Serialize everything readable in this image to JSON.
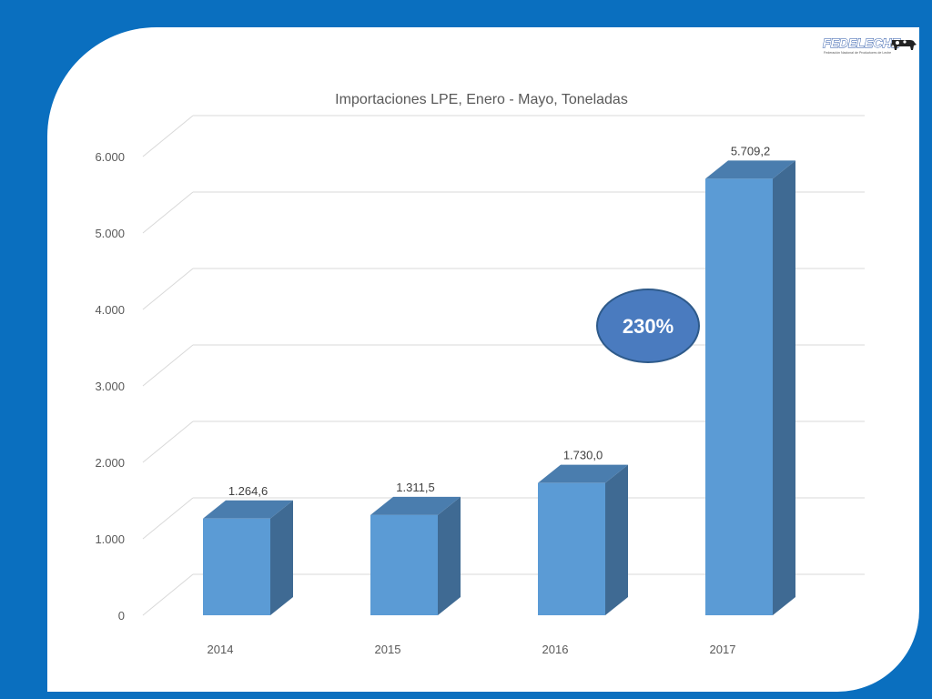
{
  "logo": {
    "name": "FEDELECHE",
    "tagline": "Federación Nacional de Productores de Leche"
  },
  "colors": {
    "background": "#0A6FBF",
    "bar_front": "#5B9BD5",
    "bar_side": "#3F6A93",
    "bar_top": "#4A7DAE",
    "badge_fill": "#4A7BBF",
    "badge_stroke": "#2E5A8A",
    "grid": "#D9D9D9"
  },
  "badge": {
    "text": "230%"
  },
  "chart_data": {
    "type": "bar",
    "style": "3d-column",
    "title": "Importaciones LPE, Enero - Mayo, Toneladas",
    "categories": [
      "2014",
      "2015",
      "2016",
      "2017"
    ],
    "values": [
      1264.6,
      1311.5,
      1730.0,
      5709.2
    ],
    "data_labels": [
      "1.264,6",
      "1.311,5",
      "1.730,0",
      "5.709,2"
    ],
    "ylim": [
      0,
      6000
    ],
    "yticks": [
      0,
      1000,
      2000,
      3000,
      4000,
      5000,
      6000
    ],
    "ytick_labels": [
      "0",
      "1.000",
      "2.000",
      "3.000",
      "4.000",
      "5.000",
      "6.000"
    ],
    "xlabel": "",
    "ylabel": "",
    "grid": true,
    "legend": "none"
  }
}
